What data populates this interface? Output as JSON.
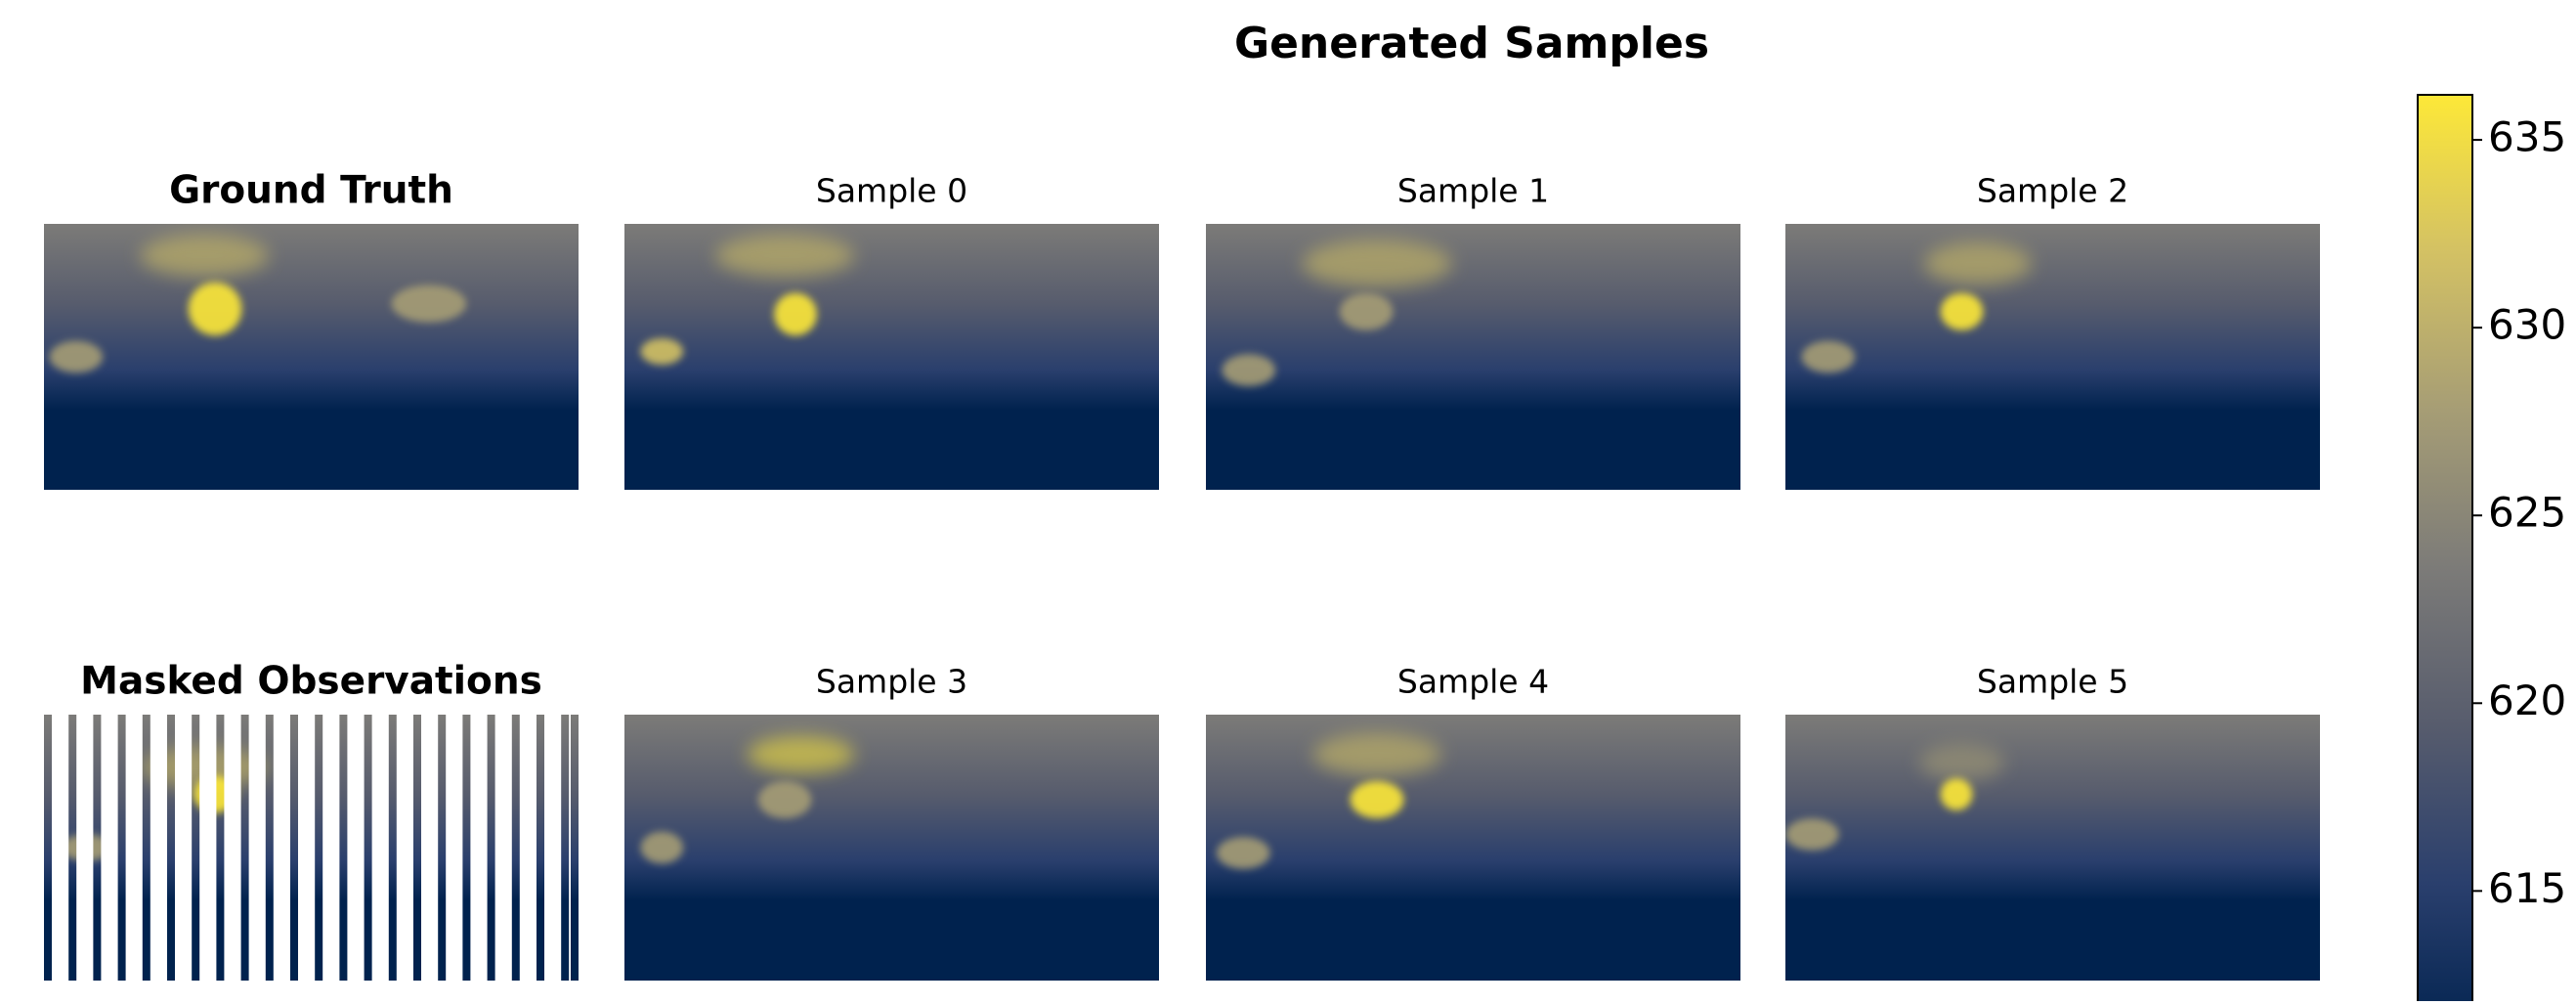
{
  "chart_data": {
    "type": "heatmap",
    "title": "Generated Samples",
    "panels": [
      {
        "title": "Ground Truth"
      },
      {
        "title": "Sample 0"
      },
      {
        "title": "Sample 1"
      },
      {
        "title": "Sample 2"
      },
      {
        "title": "Masked Observations"
      },
      {
        "title": "Sample 3"
      },
      {
        "title": "Sample 4"
      },
      {
        "title": "Sample 5"
      }
    ],
    "colorbar": {
      "ylim": [
        611,
        636.2
      ],
      "yticks": [
        615,
        620,
        625,
        630,
        635
      ],
      "colors": [
        "#00224e",
        "#2a3f6d",
        "#575c6d",
        "#7c7b78",
        "#a69d75",
        "#d3c164",
        "#fde838"
      ]
    }
  }
}
